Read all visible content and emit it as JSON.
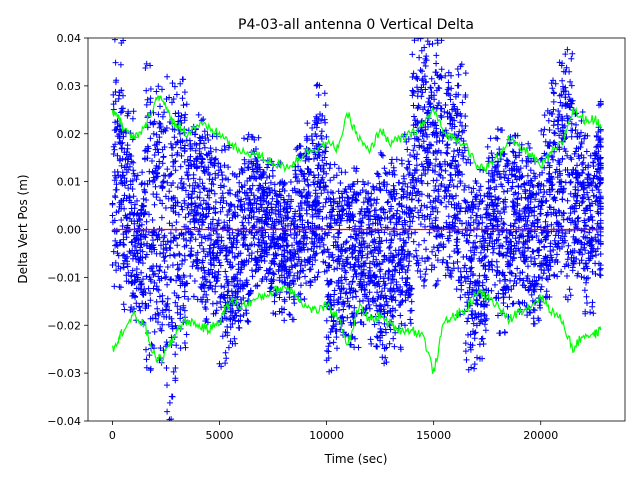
{
  "chart_data": {
    "type": "scatter",
    "title": "P4-03-all antenna 0 Vertical Delta",
    "xlabel": "Time (sec)",
    "ylabel": "Delta Vert Pos (m)",
    "xlim": [
      -1140,
      23935
    ],
    "ylim": [
      -0.04,
      0.04
    ],
    "grid": false,
    "x_ticks": [
      0,
      5000,
      10000,
      15000,
      20000
    ],
    "x_tick_labels": [
      "0",
      "5000",
      "10000",
      "15000",
      "20000"
    ],
    "y_ticks": [
      -0.04,
      -0.03,
      -0.02,
      -0.01,
      0.0,
      0.01,
      0.02,
      0.03,
      0.04
    ],
    "y_tick_labels": [
      "−0.04",
      "−0.03",
      "−0.02",
      "−0.01",
      "0.00",
      "0.01",
      "0.02",
      "0.03",
      "0.04"
    ],
    "colors": {
      "points": "#0000ff",
      "envelope": "#00ff00",
      "zero": "#ff0000"
    },
    "series": [
      {
        "name": "delta vertical position (binned range, 500 s bins)",
        "kind": "scatter-range",
        "marker": "+",
        "bin_start": [
          0,
          500,
          1000,
          1500,
          2000,
          2500,
          3000,
          3500,
          4000,
          4500,
          5000,
          5500,
          6000,
          6500,
          7000,
          7500,
          8000,
          8500,
          9000,
          9500,
          10000,
          10500,
          11000,
          11500,
          12000,
          12500,
          13000,
          13500,
          14000,
          14500,
          15000,
          15500,
          16000,
          16500,
          17000,
          17500,
          18000,
          18500,
          19000,
          19500,
          20000,
          20500,
          21000,
          21500,
          22000,
          22500
        ],
        "min": [
          -0.013,
          -0.018,
          -0.02,
          -0.03,
          -0.028,
          -0.04,
          -0.025,
          -0.015,
          -0.02,
          -0.018,
          -0.029,
          -0.024,
          -0.02,
          -0.012,
          -0.013,
          -0.018,
          -0.019,
          -0.015,
          -0.012,
          -0.01,
          -0.03,
          -0.023,
          -0.025,
          -0.02,
          -0.025,
          -0.028,
          -0.025,
          -0.02,
          -0.01,
          -0.012,
          -0.012,
          -0.01,
          -0.018,
          -0.03,
          -0.027,
          -0.015,
          -0.022,
          -0.016,
          -0.018,
          -0.02,
          -0.015,
          -0.01,
          -0.015,
          -0.01,
          -0.018,
          -0.01
        ],
        "max": [
          0.04,
          0.025,
          0.012,
          0.035,
          0.03,
          0.032,
          0.032,
          0.022,
          0.024,
          0.02,
          0.018,
          0.012,
          0.02,
          0.02,
          0.015,
          0.014,
          0.01,
          0.018,
          0.023,
          0.031,
          0.014,
          0.013,
          0.013,
          0.01,
          0.012,
          0.016,
          0.015,
          0.02,
          0.04,
          0.04,
          0.04,
          0.033,
          0.035,
          0.015,
          0.013,
          0.02,
          0.022,
          0.02,
          0.018,
          0.015,
          0.025,
          0.035,
          0.038,
          0.025,
          0.02,
          0.027
        ]
      },
      {
        "name": "upper envelope",
        "kind": "line",
        "x": [
          0,
          250,
          500,
          1000,
          1500,
          2000,
          2300,
          2700,
          3000,
          3500,
          4000,
          4500,
          5000,
          5500,
          6000,
          6500,
          7000,
          7500,
          8000,
          8500,
          9000,
          9500,
          10000,
          10500,
          11000,
          11500,
          12000,
          12500,
          13000,
          13500,
          14000,
          14500,
          15000,
          15500,
          16000,
          16500,
          17000,
          17500,
          18000,
          18500,
          19000,
          19500,
          20000,
          20500,
          21000,
          21500,
          22000,
          22500,
          22800
        ],
        "y": [
          0.025,
          0.024,
          0.021,
          0.019,
          0.021,
          0.027,
          0.028,
          0.023,
          0.022,
          0.02,
          0.022,
          0.021,
          0.02,
          0.018,
          0.016,
          0.016,
          0.015,
          0.014,
          0.013,
          0.014,
          0.016,
          0.017,
          0.018,
          0.017,
          0.024,
          0.019,
          0.016,
          0.021,
          0.018,
          0.019,
          0.02,
          0.022,
          0.025,
          0.02,
          0.019,
          0.018,
          0.013,
          0.013,
          0.015,
          0.019,
          0.017,
          0.016,
          0.013,
          0.016,
          0.018,
          0.025,
          0.023,
          0.023,
          0.022
        ]
      },
      {
        "name": "lower envelope",
        "kind": "line",
        "x": [
          0,
          250,
          500,
          1000,
          1500,
          2000,
          2300,
          2700,
          3000,
          3500,
          4000,
          4500,
          5000,
          5500,
          6000,
          6500,
          7000,
          7500,
          8000,
          8500,
          9000,
          9500,
          10000,
          10500,
          11000,
          11500,
          12000,
          12500,
          13000,
          13500,
          14000,
          14500,
          15000,
          15500,
          16000,
          16500,
          17000,
          17500,
          18000,
          18500,
          19000,
          19500,
          20000,
          20500,
          21000,
          21500,
          22000,
          22500,
          22800
        ],
        "y": [
          -0.025,
          -0.023,
          -0.021,
          -0.018,
          -0.02,
          -0.027,
          -0.027,
          -0.024,
          -0.021,
          -0.019,
          -0.02,
          -0.021,
          -0.019,
          -0.015,
          -0.016,
          -0.015,
          -0.014,
          -0.013,
          -0.012,
          -0.013,
          -0.016,
          -0.017,
          -0.016,
          -0.018,
          -0.024,
          -0.016,
          -0.019,
          -0.018,
          -0.02,
          -0.021,
          -0.021,
          -0.022,
          -0.03,
          -0.019,
          -0.018,
          -0.017,
          -0.013,
          -0.014,
          -0.016,
          -0.019,
          -0.017,
          -0.016,
          -0.014,
          -0.017,
          -0.019,
          -0.025,
          -0.022,
          -0.022,
          -0.021
        ]
      },
      {
        "name": "zero reference",
        "kind": "line",
        "x": [
          0,
          22800
        ],
        "y": [
          0,
          0
        ]
      }
    ]
  }
}
